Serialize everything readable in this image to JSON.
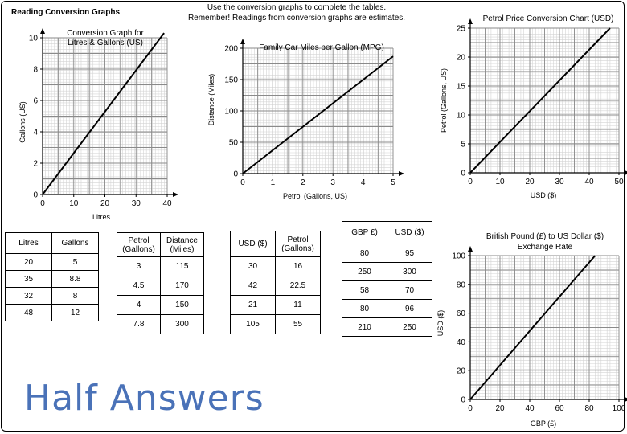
{
  "header": {
    "title": "Reading Conversion Graphs",
    "instructions_line1": "Use the conversion graphs to complete the tables.",
    "instructions_line2": "Remember! Readings from conversion graphs are estimates."
  },
  "footer": {
    "watermark": "Half Answers"
  },
  "chart_data": [
    {
      "id": "litres",
      "type": "line",
      "title": [
        "Conversion Graph for",
        "Litres & Gallons (US)"
      ],
      "xlabel": "Litres",
      "ylabel": "Gallons (US)",
      "xlim": [
        0,
        40
      ],
      "ylim": [
        0,
        10
      ],
      "xticks": [
        0,
        10,
        20,
        30,
        40
      ],
      "yticks": [
        0,
        2,
        4,
        6,
        8,
        10
      ],
      "x": [
        0,
        39
      ],
      "y": [
        0,
        10.3
      ]
    },
    {
      "id": "mpg",
      "type": "line",
      "title": [
        "Family Car Miles per Gallon (MPG)"
      ],
      "xlabel": "Petrol (Gallons, US)",
      "ylabel": "Distance (Miles)",
      "xlim": [
        0,
        5
      ],
      "ylim": [
        0,
        200
      ],
      "xticks": [
        0,
        1,
        2,
        3,
        4,
        5
      ],
      "yticks": [
        0,
        50,
        100,
        150,
        200
      ],
      "x": [
        0,
        5
      ],
      "y": [
        0,
        187
      ]
    },
    {
      "id": "petrol-price",
      "type": "line",
      "title": [
        "Petrol Price Conversion Chart (USD)"
      ],
      "xlabel": "USD ($)",
      "ylabel": "Petrol (Gallons, US)",
      "xlim": [
        0,
        50
      ],
      "ylim": [
        0,
        25
      ],
      "xticks": [
        0,
        10,
        20,
        30,
        40,
        50
      ],
      "yticks": [
        0,
        5,
        10,
        15,
        20,
        25
      ],
      "x": [
        0,
        47
      ],
      "y": [
        0,
        25
      ]
    },
    {
      "id": "gbp-usd",
      "type": "line",
      "title": [
        "British Pound (£) to US Dollar ($)",
        "Exchange Rate"
      ],
      "xlabel": "GBP (£)",
      "ylabel": "USD ($)",
      "xlim": [
        0,
        100
      ],
      "ylim": [
        0,
        100
      ],
      "xticks": [
        0,
        20,
        40,
        60,
        80,
        100
      ],
      "yticks": [
        0,
        20,
        40,
        60,
        80,
        100
      ],
      "x": [
        0,
        84
      ],
      "y": [
        0,
        100
      ]
    }
  ],
  "tables": {
    "litres": {
      "headers": [
        "Litres",
        "Gallons"
      ],
      "rows": [
        [
          "20",
          "5"
        ],
        [
          "35",
          "8.8"
        ],
        [
          "32",
          "8"
        ],
        [
          "48",
          "12"
        ]
      ]
    },
    "mpg": {
      "headers": [
        [
          "Petrol",
          "(Gallons)"
        ],
        [
          "Distance",
          "(Miles)"
        ]
      ],
      "rows": [
        [
          "3",
          "115"
        ],
        [
          "4.5",
          "170"
        ],
        [
          "4",
          "150"
        ],
        [
          "7.8",
          "300"
        ]
      ]
    },
    "usd": {
      "headers": [
        [
          "USD ($)",
          ""
        ],
        [
          "Petrol",
          "(Gallons)"
        ]
      ],
      "rows": [
        [
          "30",
          "16"
        ],
        [
          "42",
          "22.5"
        ],
        [
          "21",
          "11"
        ],
        [
          "105",
          "55"
        ]
      ]
    },
    "gbp": {
      "headers": [
        "GBP £)",
        "USD ($)"
      ],
      "rows": [
        [
          "80",
          "95"
        ],
        [
          "250",
          "300"
        ],
        [
          "58",
          "70"
        ],
        [
          "80",
          "96"
        ],
        [
          "210",
          "250"
        ]
      ]
    }
  }
}
